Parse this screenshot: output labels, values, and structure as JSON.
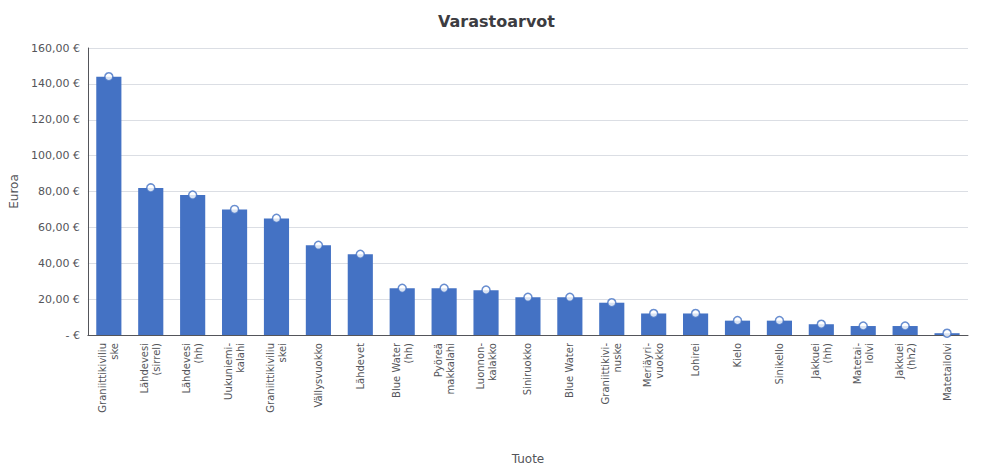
{
  "chart_data": {
    "type": "bar",
    "title": "Varastoarvot",
    "xlabel": "Tuote",
    "ylabel": "Euroa",
    "categories": [
      "Graniittikiviliu\nske",
      "Lähdevesi\n(sirrel)",
      "Lähdevesi\n(hh)",
      "Uukuniemi-\nkalahi",
      "Graniittikiviliu\nskei",
      "Vällysvuokko",
      "Lähdevet",
      "Blue Water\n(hh)",
      "Pyöreä\nmakkalahi",
      "Luonnon-\nkalakko",
      "Siniruokko",
      "Blue Water",
      "Graniittikivi-\nnuske",
      "Meriäyri-\nvuokko",
      "Lohirei",
      "Kielo",
      "Sinikello",
      "Jakkuei\n(hh)",
      "Matetai-\nlolvi",
      "Jakkuei\n(hh2)",
      "Matetailolvi"
    ],
    "values": [
      144.0,
      82.0,
      78.0,
      70.0,
      65.0,
      50.0,
      45.0,
      26.0,
      26.0,
      25.0,
      21.0,
      21.0,
      18.0,
      12.0,
      12.0,
      8.0,
      8.0,
      6.0,
      5.0,
      5.0,
      1.0
    ],
    "color": "#4472C4",
    "marker": "circle",
    "ylim": [
      0,
      160
    ],
    "yticks": [
      {
        "value": 0,
        "label": "- €"
      },
      {
        "value": 20,
        "label": "20,00 €"
      },
      {
        "value": 40,
        "label": "40,00 €"
      },
      {
        "value": 60,
        "label": "60,00 €"
      },
      {
        "value": 80,
        "label": "80,00 €"
      },
      {
        "value": 100,
        "label": "100,00 €"
      },
      {
        "value": 120,
        "label": "120,00 €"
      },
      {
        "value": 140,
        "label": "140,00 €"
      },
      {
        "value": 160,
        "label": "160,00 €"
      }
    ],
    "grid": true
  }
}
